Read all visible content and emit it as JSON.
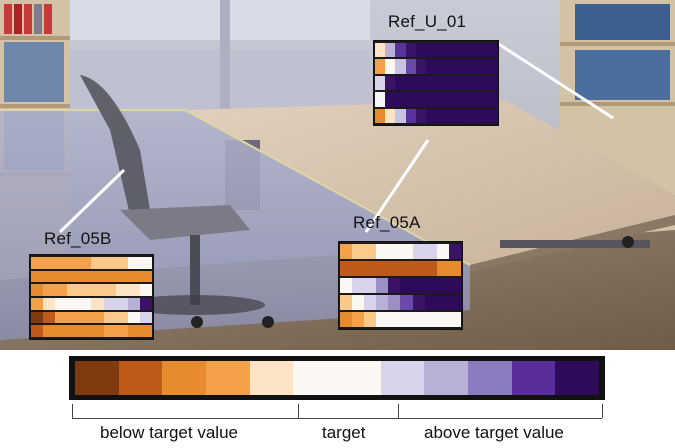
{
  "references": [
    {
      "label": "Ref_U_01",
      "rows": [
        [
          "#fde3c6",
          "#b8b0d6",
          "#58339a",
          "#3a1268",
          "#2e0b5a",
          "#2e0b5a",
          "#2e0b5a",
          "#2e0b5a",
          "#2e0b5a",
          "#2e0b5a",
          "#2e0b5a",
          "#2e0b5a"
        ],
        [
          "#f4a24a",
          "#fbf8f3",
          "#c9c3e3",
          "#6a4aa8",
          "#3a1268",
          "#2e0b5a",
          "#2e0b5a",
          "#2e0b5a",
          "#2e0b5a",
          "#2e0b5a",
          "#2e0b5a",
          "#2e0b5a"
        ],
        [
          "#d9d3ec",
          "#3a1268",
          "#2e0b5a",
          "#2e0b5a",
          "#2e0b5a",
          "#2e0b5a",
          "#2e0b5a",
          "#2e0b5a",
          "#2e0b5a",
          "#2e0b5a",
          "#2e0b5a",
          "#2e0b5a"
        ],
        [
          "#f6f4fa",
          "#2e0b5a",
          "#2e0b5a",
          "#2e0b5a",
          "#2e0b5a",
          "#2e0b5a",
          "#2e0b5a",
          "#2e0b5a",
          "#2e0b5a",
          "#2e0b5a",
          "#2e0b5a",
          "#2e0b5a"
        ],
        [
          "#e88a2e",
          "#fde3c6",
          "#c9c3e3",
          "#58339a",
          "#3a1268",
          "#2e0b5a",
          "#2e0b5a",
          "#2e0b5a",
          "#2e0b5a",
          "#2e0b5a",
          "#2e0b5a",
          "#2e0b5a"
        ]
      ]
    },
    {
      "label": "Ref_05B",
      "rows": [
        [
          "#f4a24a",
          "#f4a24a",
          "#f4a24a",
          "#f4a24a",
          "#f4a24a",
          "#fbc98a",
          "#fbc98a",
          "#fbc98a",
          "#fbf8f3",
          "#fbf8f3"
        ],
        [
          "#e88a2e",
          "#e88a2e",
          "#e88a2e",
          "#e88a2e",
          "#e88a2e",
          "#e88a2e",
          "#e88a2e",
          "#e88a2e",
          "#e88a2e",
          "#e88a2e"
        ],
        [
          "#e88a2e",
          "#f4a24a",
          "#f4a24a",
          "#fbc98a",
          "#fbc98a",
          "#fbc98a",
          "#fbc98a",
          "#fde3c6",
          "#fde3c6",
          "#fbf8f3"
        ],
        [
          "#f4a24a",
          "#fde3c6",
          "#fbf8f3",
          "#fbf8f3",
          "#fbf8f3",
          "#fde3c6",
          "#d9d3ec",
          "#d9d3ec",
          "#b8b0d6",
          "#3a1268"
        ],
        [
          "#7f3a10",
          "#c05a1a",
          "#f4a24a",
          "#f4a24a",
          "#f4a24a",
          "#f4a24a",
          "#fbc98a",
          "#fbc98a",
          "#fbf8f3",
          "#d9d3ec"
        ],
        [
          "#c05a1a",
          "#e88a2e",
          "#e88a2e",
          "#e88a2e",
          "#e88a2e",
          "#e88a2e",
          "#f4a24a",
          "#f4a24a",
          "#e88a2e",
          "#e88a2e"
        ]
      ]
    },
    {
      "label": "Ref_05A",
      "rows": [
        [
          "#f4a24a",
          "#fbc98a",
          "#fbc98a",
          "#fbf8f3",
          "#fbf8f3",
          "#fbf8f3",
          "#d9d3ec",
          "#d9d3ec",
          "#fbf8f3",
          "#3a1268"
        ],
        [
          "#c05a1a",
          "#c05a1a",
          "#c05a1a",
          "#c05a1a",
          "#c05a1a",
          "#c05a1a",
          "#c05a1a",
          "#c05a1a",
          "#e88a2e",
          "#e88a2e"
        ],
        [
          "#fbf8f3",
          "#d9d3ec",
          "#d9d3ec",
          "#9c8fc6",
          "#3a1268",
          "#2e0b5a",
          "#2e0b5a",
          "#2e0b5a",
          "#2e0b5a",
          "#2e0b5a"
        ],
        [
          "#fbc98a",
          "#fbf8f3",
          "#d9d3ec",
          "#b8b0d6",
          "#9c8fc6",
          "#6a4aa8",
          "#3a1268",
          "#2e0b5a",
          "#2e0b5a",
          "#2e0b5a"
        ],
        [
          "#e88a2e",
          "#f4a24a",
          "#fbc98a",
          "#fbf8f3",
          "#fbf8f3",
          "#fbf8f3",
          "#fbf8f3",
          "#fbf8f3",
          "#fbf8f3",
          "#fbf8f3"
        ]
      ]
    }
  ],
  "legend": {
    "colors": [
      "#7f3a10",
      "#c05a1a",
      "#e88a2e",
      "#f4a24a",
      "#fde3c6",
      "#fbf8f3",
      "#fbf8f3",
      "#d9d3ec",
      "#b8b0d6",
      "#8a7cbf",
      "#5a2e9a",
      "#2e0b5a"
    ],
    "below_label": "below target value",
    "target_label": "target",
    "above_label": "above target value"
  }
}
